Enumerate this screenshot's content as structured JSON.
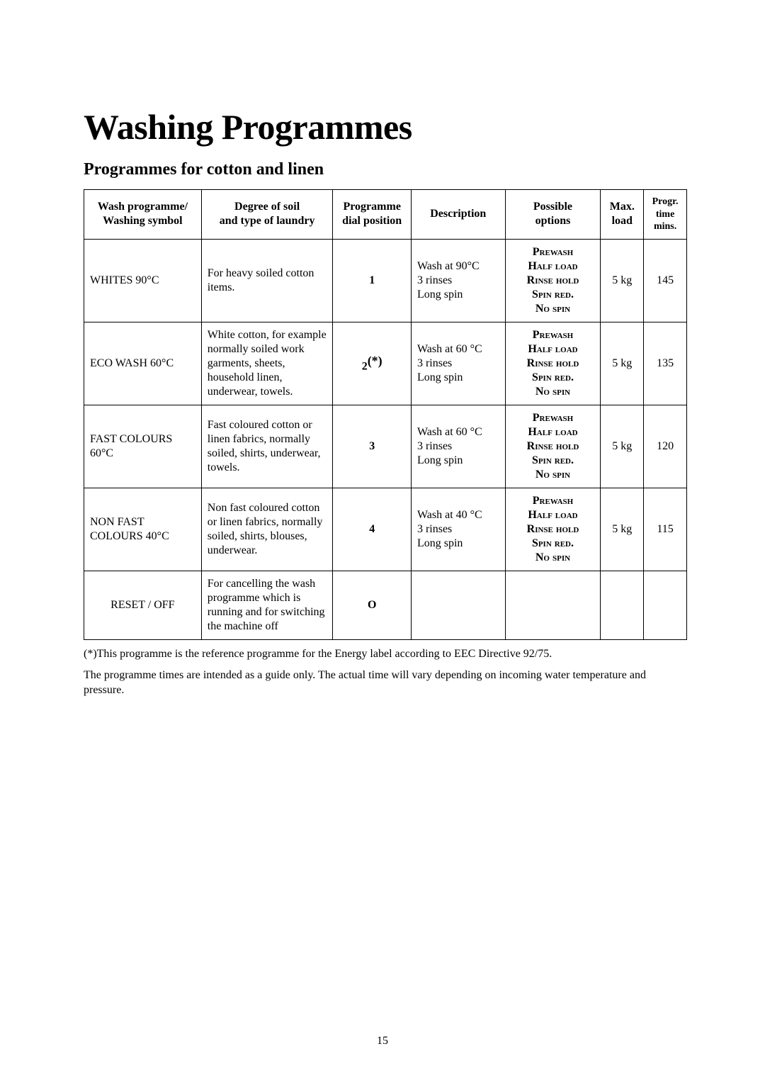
{
  "title": "Washing Programmes",
  "subtitle": "Programmes for cotton and linen",
  "columns": {
    "c0a": "Wash programme/",
    "c0b": "Washing symbol",
    "c1a": "Degree of soil",
    "c1b": "and type of laundry",
    "c2a": "Programme",
    "c2b": "dial position",
    "c3": "Description",
    "c4a": "Possible",
    "c4b": "options",
    "c5a": "Max.",
    "c5b": "load",
    "c6a": "Progr.",
    "c6b": "time",
    "c6c": "mins."
  },
  "rows": [
    {
      "name": "WHITES 90°C",
      "soil": "For heavy soiled cotton items.",
      "dial": "1",
      "dial_sup": "",
      "desc": "Wash at 90°C\n3 rinses\nLong spin",
      "opts": "Prewash\nHalf load\nRinse hold\nSpin red.\nNo spin",
      "load": "5 kg",
      "time": "145"
    },
    {
      "name": "ECO WASH 60°C",
      "soil": "White cotton, for example normally soiled work garments, sheets, household linen, underwear, towels.",
      "dial": "2",
      "dial_sup": "(*)",
      "desc": "Wash at 60 °C\n3 rinses\nLong spin",
      "opts": "Prewash\nHalf load\nRinse hold\nSpin red.\nNo spin",
      "load": "5 kg",
      "time": "135"
    },
    {
      "name": "FAST COLOURS 60°C",
      "soil": "Fast coloured cotton or linen fabrics, normally soiled, shirts, underwear, towels.",
      "dial": "3",
      "dial_sup": "",
      "desc": "Wash at 60 °C\n3 rinses\nLong spin",
      "opts": "Prewash\nHalf load\nRinse hold\nSpin red.\nNo spin",
      "load": "5 kg",
      "time": "120"
    },
    {
      "name": "NON FAST COLOURS 40°C",
      "soil": "Non fast coloured cotton or linen fabrics, normally soiled, shirts, blouses, underwear.",
      "dial": "4",
      "dial_sup": "",
      "desc": "Wash at 40 °C\n3 rinses\nLong spin",
      "opts": "Prewash\nHalf load\nRinse hold\nSpin red.\nNo spin",
      "load": "5 kg",
      "time": "115"
    },
    {
      "name": "RESET / OFF",
      "soil": "For cancelling the wash programme which is running and for switching the machine off",
      "dial": "O",
      "dial_sup": "",
      "desc": "",
      "opts": "",
      "load": "",
      "time": ""
    }
  ],
  "footnote1": "(*)This programme is the reference programme for the Energy label according to EEC Directive 92/75.",
  "footnote2": "The programme times are intended as a guide only. The actual time will vary depending on incoming water temperature and pressure.",
  "page_number": "15"
}
